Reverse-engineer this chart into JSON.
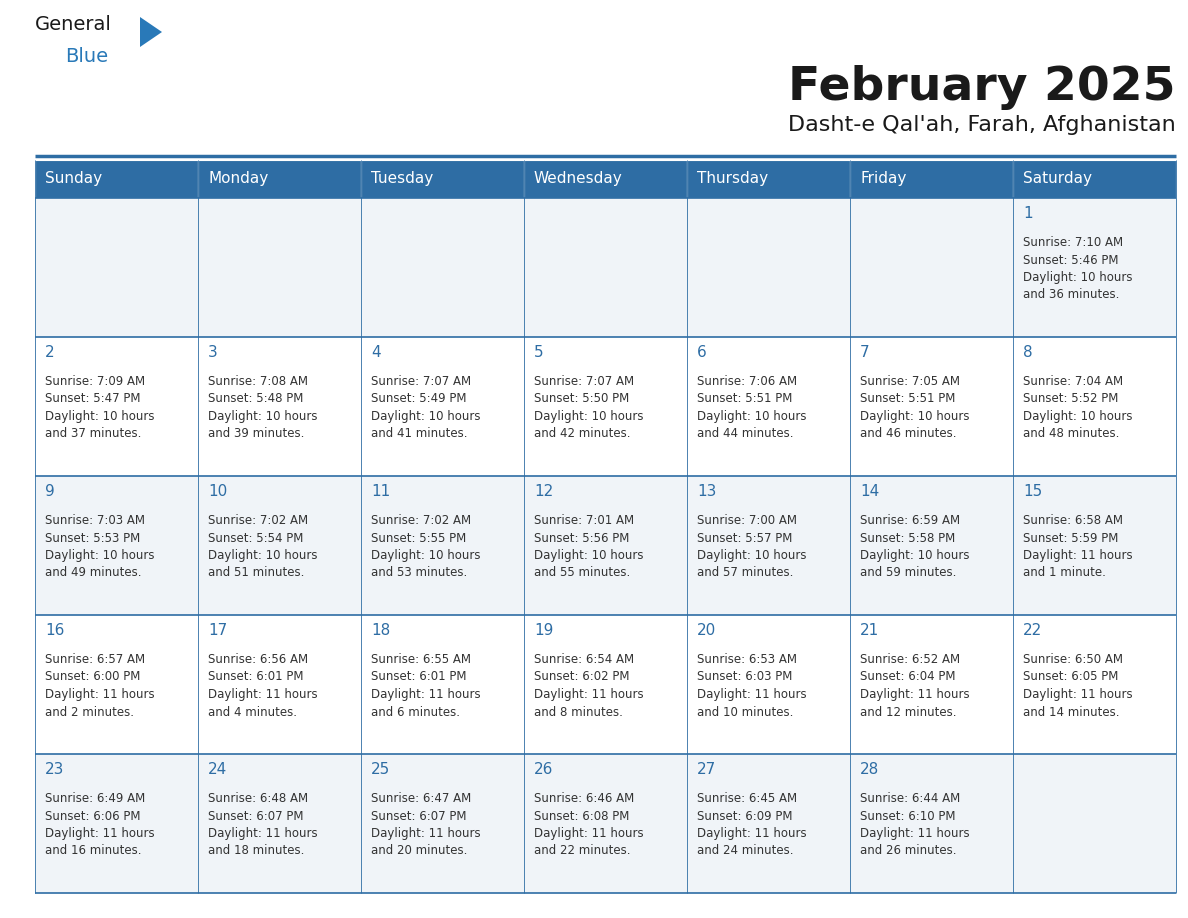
{
  "title": "February 2025",
  "subtitle": "Dasht-e Qal'ah, Farah, Afghanistan",
  "days_of_week": [
    "Sunday",
    "Monday",
    "Tuesday",
    "Wednesday",
    "Thursday",
    "Friday",
    "Saturday"
  ],
  "header_bg": "#2E6DA4",
  "header_text": "#FFFFFF",
  "cell_bg_light": "#F0F4F8",
  "cell_bg_white": "#FFFFFF",
  "day_num_color": "#2E6DA4",
  "text_color": "#333333",
  "border_color": "#2E6DA4",
  "calendar_data": [
    {
      "day": 1,
      "col": 6,
      "row": 0,
      "sunrise": "7:10 AM",
      "sunset": "5:46 PM",
      "daylight_h": "10 hours",
      "daylight_m": "36 minutes"
    },
    {
      "day": 2,
      "col": 0,
      "row": 1,
      "sunrise": "7:09 AM",
      "sunset": "5:47 PM",
      "daylight_h": "10 hours",
      "daylight_m": "37 minutes"
    },
    {
      "day": 3,
      "col": 1,
      "row": 1,
      "sunrise": "7:08 AM",
      "sunset": "5:48 PM",
      "daylight_h": "10 hours",
      "daylight_m": "39 minutes"
    },
    {
      "day": 4,
      "col": 2,
      "row": 1,
      "sunrise": "7:07 AM",
      "sunset": "5:49 PM",
      "daylight_h": "10 hours",
      "daylight_m": "41 minutes"
    },
    {
      "day": 5,
      "col": 3,
      "row": 1,
      "sunrise": "7:07 AM",
      "sunset": "5:50 PM",
      "daylight_h": "10 hours",
      "daylight_m": "42 minutes"
    },
    {
      "day": 6,
      "col": 4,
      "row": 1,
      "sunrise": "7:06 AM",
      "sunset": "5:51 PM",
      "daylight_h": "10 hours",
      "daylight_m": "44 minutes"
    },
    {
      "day": 7,
      "col": 5,
      "row": 1,
      "sunrise": "7:05 AM",
      "sunset": "5:51 PM",
      "daylight_h": "10 hours",
      "daylight_m": "46 minutes"
    },
    {
      "day": 8,
      "col": 6,
      "row": 1,
      "sunrise": "7:04 AM",
      "sunset": "5:52 PM",
      "daylight_h": "10 hours",
      "daylight_m": "48 minutes"
    },
    {
      "day": 9,
      "col": 0,
      "row": 2,
      "sunrise": "7:03 AM",
      "sunset": "5:53 PM",
      "daylight_h": "10 hours",
      "daylight_m": "49 minutes"
    },
    {
      "day": 10,
      "col": 1,
      "row": 2,
      "sunrise": "7:02 AM",
      "sunset": "5:54 PM",
      "daylight_h": "10 hours",
      "daylight_m": "51 minutes"
    },
    {
      "day": 11,
      "col": 2,
      "row": 2,
      "sunrise": "7:02 AM",
      "sunset": "5:55 PM",
      "daylight_h": "10 hours",
      "daylight_m": "53 minutes"
    },
    {
      "day": 12,
      "col": 3,
      "row": 2,
      "sunrise": "7:01 AM",
      "sunset": "5:56 PM",
      "daylight_h": "10 hours",
      "daylight_m": "55 minutes"
    },
    {
      "day": 13,
      "col": 4,
      "row": 2,
      "sunrise": "7:00 AM",
      "sunset": "5:57 PM",
      "daylight_h": "10 hours",
      "daylight_m": "57 minutes"
    },
    {
      "day": 14,
      "col": 5,
      "row": 2,
      "sunrise": "6:59 AM",
      "sunset": "5:58 PM",
      "daylight_h": "10 hours",
      "daylight_m": "59 minutes"
    },
    {
      "day": 15,
      "col": 6,
      "row": 2,
      "sunrise": "6:58 AM",
      "sunset": "5:59 PM",
      "daylight_h": "11 hours",
      "daylight_m": "1 minute"
    },
    {
      "day": 16,
      "col": 0,
      "row": 3,
      "sunrise": "6:57 AM",
      "sunset": "6:00 PM",
      "daylight_h": "11 hours",
      "daylight_m": "2 minutes"
    },
    {
      "day": 17,
      "col": 1,
      "row": 3,
      "sunrise": "6:56 AM",
      "sunset": "6:01 PM",
      "daylight_h": "11 hours",
      "daylight_m": "4 minutes"
    },
    {
      "day": 18,
      "col": 2,
      "row": 3,
      "sunrise": "6:55 AM",
      "sunset": "6:01 PM",
      "daylight_h": "11 hours",
      "daylight_m": "6 minutes"
    },
    {
      "day": 19,
      "col": 3,
      "row": 3,
      "sunrise": "6:54 AM",
      "sunset": "6:02 PM",
      "daylight_h": "11 hours",
      "daylight_m": "8 minutes"
    },
    {
      "day": 20,
      "col": 4,
      "row": 3,
      "sunrise": "6:53 AM",
      "sunset": "6:03 PM",
      "daylight_h": "11 hours",
      "daylight_m": "10 minutes"
    },
    {
      "day": 21,
      "col": 5,
      "row": 3,
      "sunrise": "6:52 AM",
      "sunset": "6:04 PM",
      "daylight_h": "11 hours",
      "daylight_m": "12 minutes"
    },
    {
      "day": 22,
      "col": 6,
      "row": 3,
      "sunrise": "6:50 AM",
      "sunset": "6:05 PM",
      "daylight_h": "11 hours",
      "daylight_m": "14 minutes"
    },
    {
      "day": 23,
      "col": 0,
      "row": 4,
      "sunrise": "6:49 AM",
      "sunset": "6:06 PM",
      "daylight_h": "11 hours",
      "daylight_m": "16 minutes"
    },
    {
      "day": 24,
      "col": 1,
      "row": 4,
      "sunrise": "6:48 AM",
      "sunset": "6:07 PM",
      "daylight_h": "11 hours",
      "daylight_m": "18 minutes"
    },
    {
      "day": 25,
      "col": 2,
      "row": 4,
      "sunrise": "6:47 AM",
      "sunset": "6:07 PM",
      "daylight_h": "11 hours",
      "daylight_m": "20 minutes"
    },
    {
      "day": 26,
      "col": 3,
      "row": 4,
      "sunrise": "6:46 AM",
      "sunset": "6:08 PM",
      "daylight_h": "11 hours",
      "daylight_m": "22 minutes"
    },
    {
      "day": 27,
      "col": 4,
      "row": 4,
      "sunrise": "6:45 AM",
      "sunset": "6:09 PM",
      "daylight_h": "11 hours",
      "daylight_m": "24 minutes"
    },
    {
      "day": 28,
      "col": 5,
      "row": 4,
      "sunrise": "6:44 AM",
      "sunset": "6:10 PM",
      "daylight_h": "11 hours",
      "daylight_m": "26 minutes"
    }
  ],
  "logo_color1": "#1a1a1a",
  "logo_color2": "#2979B8",
  "logo_triangle_color": "#2979B8",
  "fig_width": 11.88,
  "fig_height": 9.18,
  "dpi": 100
}
